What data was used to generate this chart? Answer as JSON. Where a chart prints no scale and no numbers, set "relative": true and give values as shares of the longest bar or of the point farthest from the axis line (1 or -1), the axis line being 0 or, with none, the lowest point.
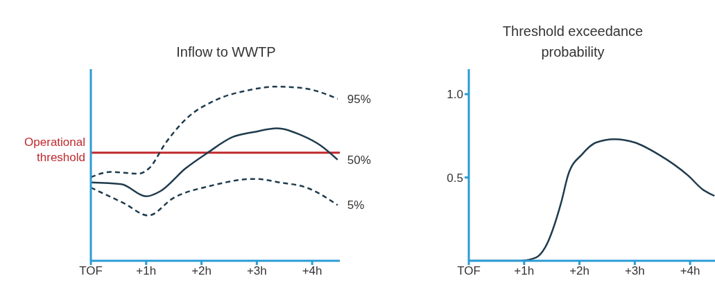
{
  "chart_data": [
    {
      "type": "line",
      "title": "Inflow to WWTP",
      "relative": true,
      "tick_labels": "x",
      "xlim": [
        0,
        4.5
      ],
      "xticks": [
        {
          "value": 0,
          "label": "TOF"
        },
        {
          "value": 1,
          "label": "+1h"
        },
        {
          "value": 2,
          "label": "+2h"
        },
        {
          "value": 3,
          "label": "+3h"
        },
        {
          "value": 4,
          "label": "+4h"
        }
      ],
      "series": [
        {
          "name": "95%",
          "color": "#1f3b4d",
          "line_style": "dashed",
          "x": [
            0,
            0.36,
            0.86,
            1.05,
            1.36,
            1.74,
            2.24,
            2.86,
            3.36,
            3.86,
            4.46
          ],
          "values": [
            0.48,
            0.51,
            0.5,
            0.53,
            0.68,
            0.82,
            0.92,
            0.98,
            1.0,
            0.99,
            0.93
          ]
        },
        {
          "name": "50%",
          "color": "#1f3b4d",
          "line_style": "solid",
          "x": [
            0,
            0.55,
            1.0,
            1.26,
            1.71,
            2.11,
            2.56,
            2.96,
            3.36,
            3.81,
            4.16,
            4.46
          ],
          "values": [
            0.45,
            0.44,
            0.37,
            0.4,
            0.53,
            0.62,
            0.71,
            0.74,
            0.76,
            0.72,
            0.66,
            0.58
          ]
        },
        {
          "name": "5%",
          "color": "#1f3b4d",
          "line_style": "dashed",
          "x": [
            0,
            0.6,
            1.04,
            1.49,
            2.16,
            2.96,
            3.41,
            3.9,
            4.46
          ],
          "values": [
            0.42,
            0.33,
            0.26,
            0.36,
            0.43,
            0.47,
            0.45,
            0.42,
            0.32
          ]
        }
      ],
      "ref_lines": [
        {
          "axis": "y",
          "value": 0.62,
          "label": "Operational threshold",
          "color": "#c0282d"
        }
      ]
    },
    {
      "type": "line",
      "title": "Threshold exceedance probability",
      "xlim": [
        0,
        4.45
      ],
      "ylim": [
        0,
        1.15
      ],
      "xticks": [
        {
          "value": 0,
          "label": "TOF"
        },
        {
          "value": 1,
          "label": "+1h"
        },
        {
          "value": 2,
          "label": "+2h"
        },
        {
          "value": 3,
          "label": "+3h"
        },
        {
          "value": 4,
          "label": "+4h"
        }
      ],
      "yticks": [
        {
          "value": 0.5,
          "label": "0.5"
        },
        {
          "value": 1,
          "label": "1.0"
        }
      ],
      "series": [
        {
          "color": "#1f3b4d",
          "line_style": "solid",
          "x": [
            0,
            0.93,
            1.22,
            1.38,
            1.67,
            1.8,
            2.05,
            2.3,
            2.63,
            3.0,
            3.42,
            3.97,
            4.22,
            4.44
          ],
          "values": [
            0,
            0,
            0.02,
            0.08,
            0.35,
            0.52,
            0.64,
            0.71,
            0.73,
            0.71,
            0.64,
            0.51,
            0.43,
            0.39
          ]
        }
      ]
    }
  ]
}
